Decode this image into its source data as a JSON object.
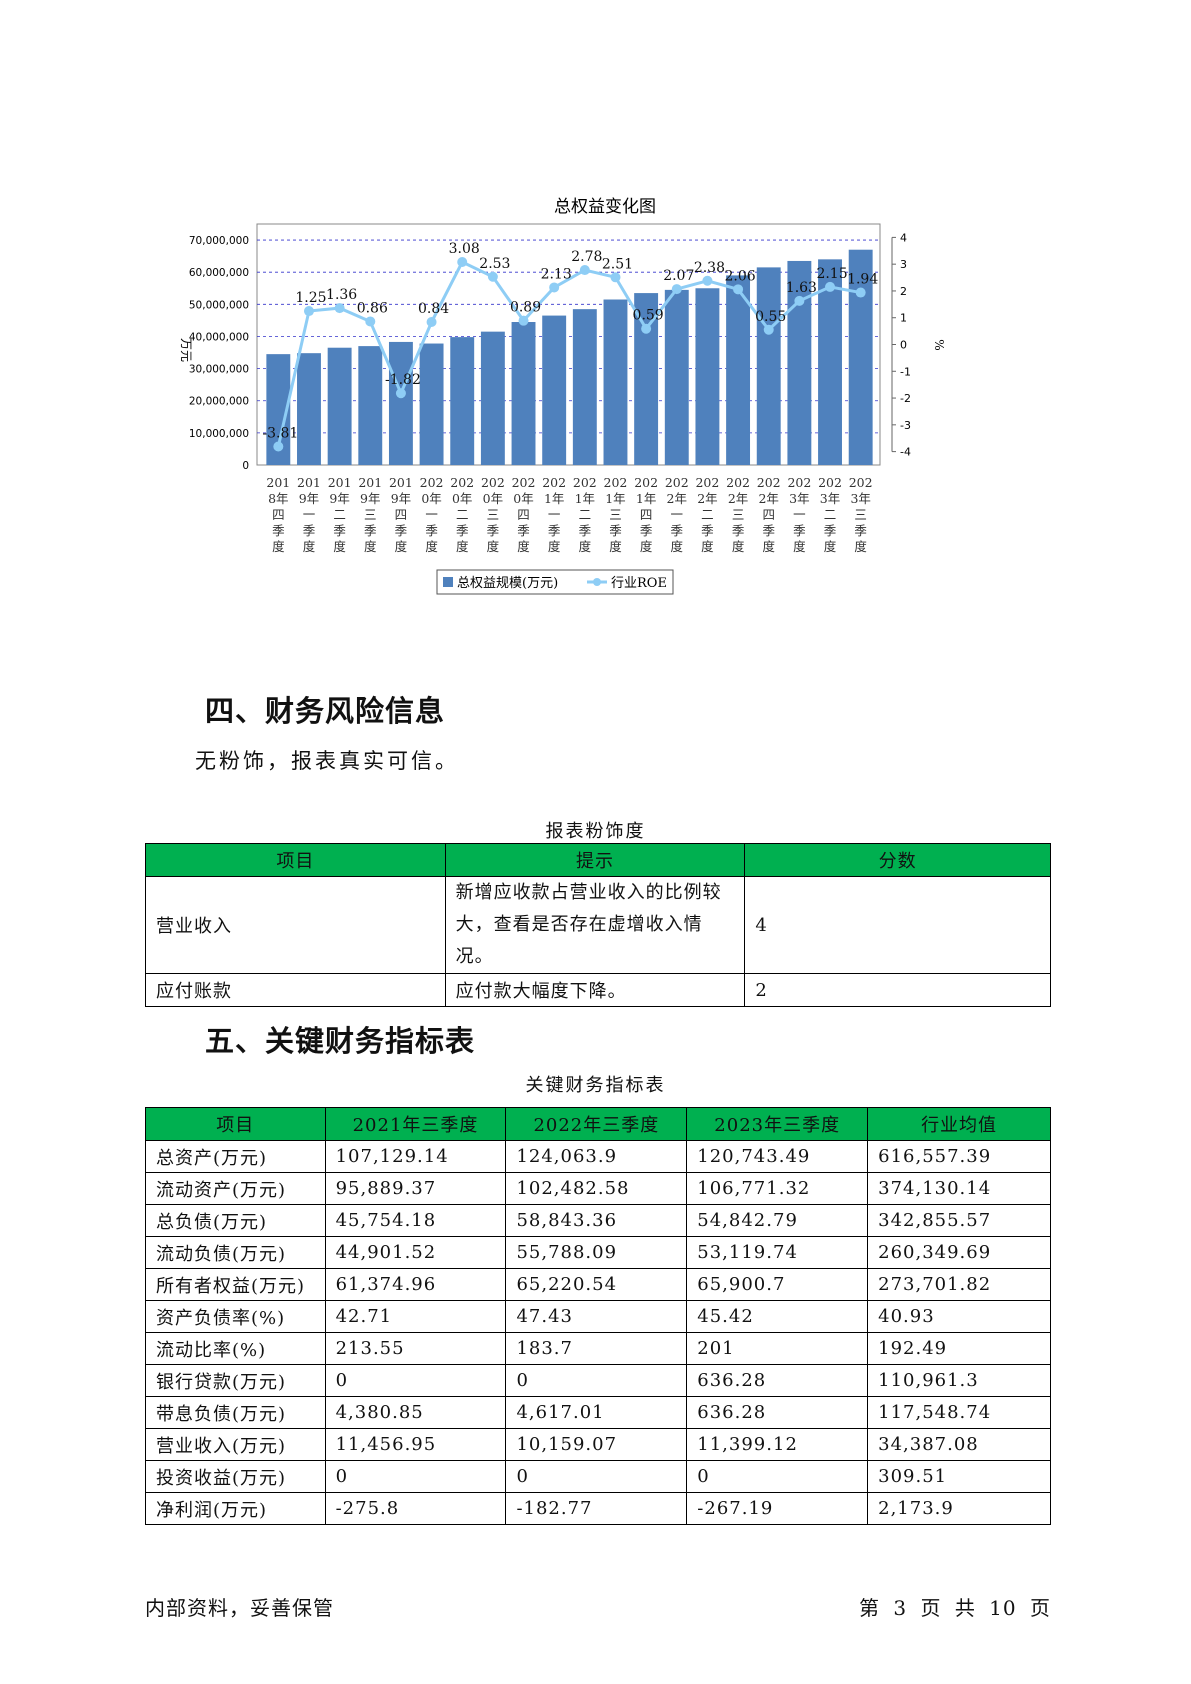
{
  "chart": {
    "title": "总权益变化图",
    "y_left_label": "万元",
    "y_right_label": "%",
    "y_left_ticks": [
      "0",
      "10,000,000",
      "20,000,000",
      "30,000,000",
      "40,000,000",
      "50,000,000",
      "60,000,000",
      "70,000,000"
    ],
    "y_right_ticks": [
      "4",
      "3",
      "2",
      "1",
      "0",
      "-1",
      "-2",
      "-3",
      "-4"
    ],
    "legend": [
      "总权益规模(万元)",
      "行业ROE"
    ],
    "colors": {
      "bar": "#4f81bd",
      "line": "#8ecdf5",
      "grid": "#3333cc"
    }
  },
  "chart_data": {
    "type": "bar",
    "title": "总权益变化图",
    "xlabel": "",
    "ylabel": "万元",
    "y2label": "%",
    "ylim": [
      0,
      75000000
    ],
    "y2lim": [
      -4.5,
      4.5
    ],
    "grid": true,
    "legend_position": "bottom",
    "categories": [
      "2018年四季度",
      "2019年一季度",
      "2019年二季度",
      "2019年三季度",
      "2019年四季度",
      "2020年一季度",
      "2020年二季度",
      "2020年三季度",
      "2020年四季度",
      "2021年一季度",
      "2021年二季度",
      "2021年三季度",
      "2021年四季度",
      "2022年一季度",
      "2022年二季度",
      "2022年三季度",
      "2022年四季度",
      "2023年一季度",
      "2023年二季度",
      "2023年三季度"
    ],
    "series": [
      {
        "name": "总权益规模(万元)",
        "type": "bar",
        "axis": "left",
        "values": [
          34500000,
          34800000,
          36500000,
          37000000,
          38300000,
          37800000,
          39800000,
          41500000,
          44500000,
          46500000,
          48500000,
          51500000,
          53500000,
          54500000,
          55000000,
          59000000,
          61500000,
          63500000,
          64000000,
          67000000
        ]
      },
      {
        "name": "行业ROE",
        "type": "line",
        "axis": "right",
        "values": [
          -3.81,
          1.25,
          1.36,
          0.86,
          -1.82,
          0.84,
          3.08,
          2.53,
          0.89,
          2.13,
          2.78,
          2.51,
          0.59,
          2.07,
          2.38,
          2.06,
          0.55,
          1.63,
          2.15,
          1.94
        ],
        "labels": [
          "-3.81",
          "1.25",
          "1.36",
          "0.86",
          "-1.82",
          "0.84",
          "3.08",
          "2.53",
          "0.89",
          "2.13",
          "2.78",
          "2.51",
          "0.59",
          "2.07",
          "2.38",
          "2.06",
          "0.55",
          "1.63",
          "2.15",
          "1.94"
        ]
      }
    ]
  },
  "section4": {
    "title": "四、财务风险信息",
    "text": "无粉饰，报表真实可信。",
    "table_caption": "报表粉饰度",
    "headers": [
      "项目",
      "提示",
      "分数"
    ],
    "rows": [
      {
        "item": "营业收入",
        "tip_line1": "新增应收款占营业收入的比例较",
        "tip_line2": "大，查看是否存在虚增收入情况。",
        "score": "4"
      },
      {
        "item": "应付账款",
        "tip_line1": "应付款大幅度下降。",
        "tip_line2": "",
        "score": "2"
      }
    ]
  },
  "section5": {
    "title": "五、关键财务指标表",
    "table_caption": "关键财务指标表",
    "headers": [
      "项目",
      "2021年三季度",
      "2022年三季度",
      "2023年三季度",
      "行业均值"
    ],
    "rows": [
      [
        "总资产(万元)",
        "107,129.14",
        "124,063.9",
        "120,743.49",
        "616,557.39"
      ],
      [
        "流动资产(万元)",
        "95,889.37",
        "102,482.58",
        "106,771.32",
        "374,130.14"
      ],
      [
        "总负债(万元)",
        "45,754.18",
        "58,843.36",
        "54,842.79",
        "342,855.57"
      ],
      [
        "流动负债(万元)",
        "44,901.52",
        "55,788.09",
        "53,119.74",
        "260,349.69"
      ],
      [
        "所有者权益(万元)",
        "61,374.96",
        "65,220.54",
        "65,900.7",
        "273,701.82"
      ],
      [
        "资产负债率(%)",
        "42.71",
        "47.43",
        "45.42",
        "40.93"
      ],
      [
        "流动比率(%)",
        "213.55",
        "183.7",
        "201",
        "192.49"
      ],
      [
        "银行贷款(万元)",
        "0",
        "0",
        "636.28",
        "110,961.3"
      ],
      [
        "带息负债(万元)",
        "4,380.85",
        "4,617.01",
        "636.28",
        "117,548.74"
      ],
      [
        "营业收入(万元)",
        "11,456.95",
        "10,159.07",
        "11,399.12",
        "34,387.08"
      ],
      [
        "投资收益(万元)",
        "0",
        "0",
        "0",
        "309.51"
      ],
      [
        "净利润(万元)",
        "-275.8",
        "-182.77",
        "-267.19",
        "2,173.9"
      ]
    ]
  },
  "footer": {
    "left": "内部资料，妥善保管",
    "right": "第 3 页  共 10 页"
  }
}
